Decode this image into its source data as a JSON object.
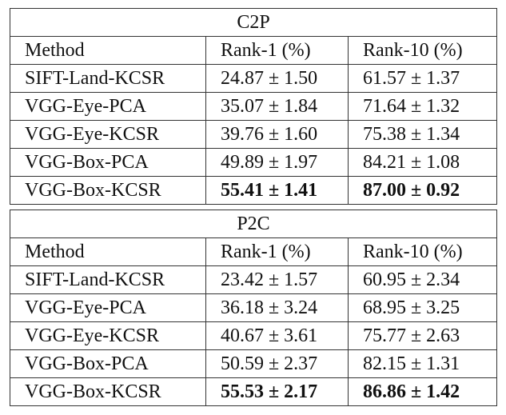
{
  "tables": [
    {
      "title": "C2P",
      "header": [
        "Method",
        "Rank-1 (%)",
        "Rank-10 (%)"
      ],
      "rows": [
        [
          "SIFT-Land-KCSR",
          "24.87 ± 1.50",
          "61.57 ± 1.37"
        ],
        [
          "VGG-Eye-PCA",
          "35.07 ± 1.84",
          "71.64 ± 1.32"
        ],
        [
          "VGG-Eye-KCSR",
          "39.76 ± 1.60",
          "75.38 ± 1.34"
        ],
        [
          "VGG-Box-PCA",
          "49.89 ± 1.97",
          "84.21 ± 1.08"
        ],
        [
          "VGG-Box-KCSR",
          "55.41 ± 1.41",
          "87.00 ± 0.92"
        ]
      ]
    },
    {
      "title": "P2C",
      "header": [
        "Method",
        "Rank-1 (%)",
        "Rank-10 (%)"
      ],
      "rows": [
        [
          "SIFT-Land-KCSR",
          "23.42 ± 1.57",
          "60.95 ± 2.34"
        ],
        [
          "VGG-Eye-PCA",
          "36.18 ± 3.24",
          "68.95 ± 3.25"
        ],
        [
          "VGG-Eye-KCSR",
          "40.67 ± 3.61",
          "75.77 ± 2.63"
        ],
        [
          "VGG-Box-PCA",
          "50.59 ± 2.37",
          "82.15 ± 1.31"
        ],
        [
          "VGG-Box-KCSR",
          "55.53 ± 2.17",
          "86.86 ± 1.42"
        ]
      ]
    }
  ]
}
